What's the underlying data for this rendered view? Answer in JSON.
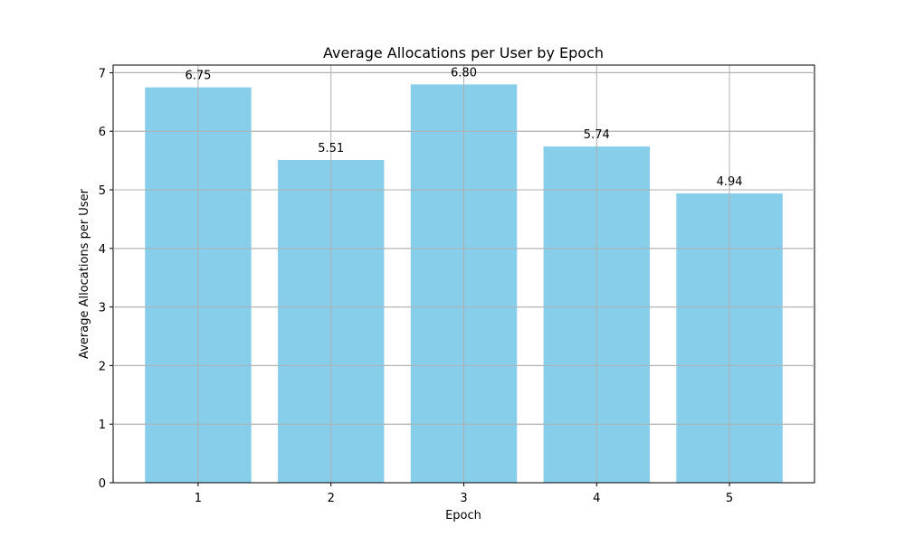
{
  "chart_data": {
    "type": "bar",
    "title": "Average Allocations per User by Epoch",
    "xlabel": "Epoch",
    "ylabel": "Average Allocations per User",
    "categories": [
      "1",
      "2",
      "3",
      "4",
      "5"
    ],
    "values": [
      6.75,
      5.51,
      6.8,
      5.74,
      4.94
    ],
    "value_labels": [
      "6.75",
      "5.51",
      "6.80",
      "5.74",
      "4.94"
    ],
    "yticks": [
      0,
      1,
      2,
      3,
      4,
      5,
      6,
      7
    ],
    "ylim": [
      0,
      7.13
    ],
    "grid": true,
    "bar_color": "#87ceeb",
    "grid_color": "#b0b0b0"
  }
}
